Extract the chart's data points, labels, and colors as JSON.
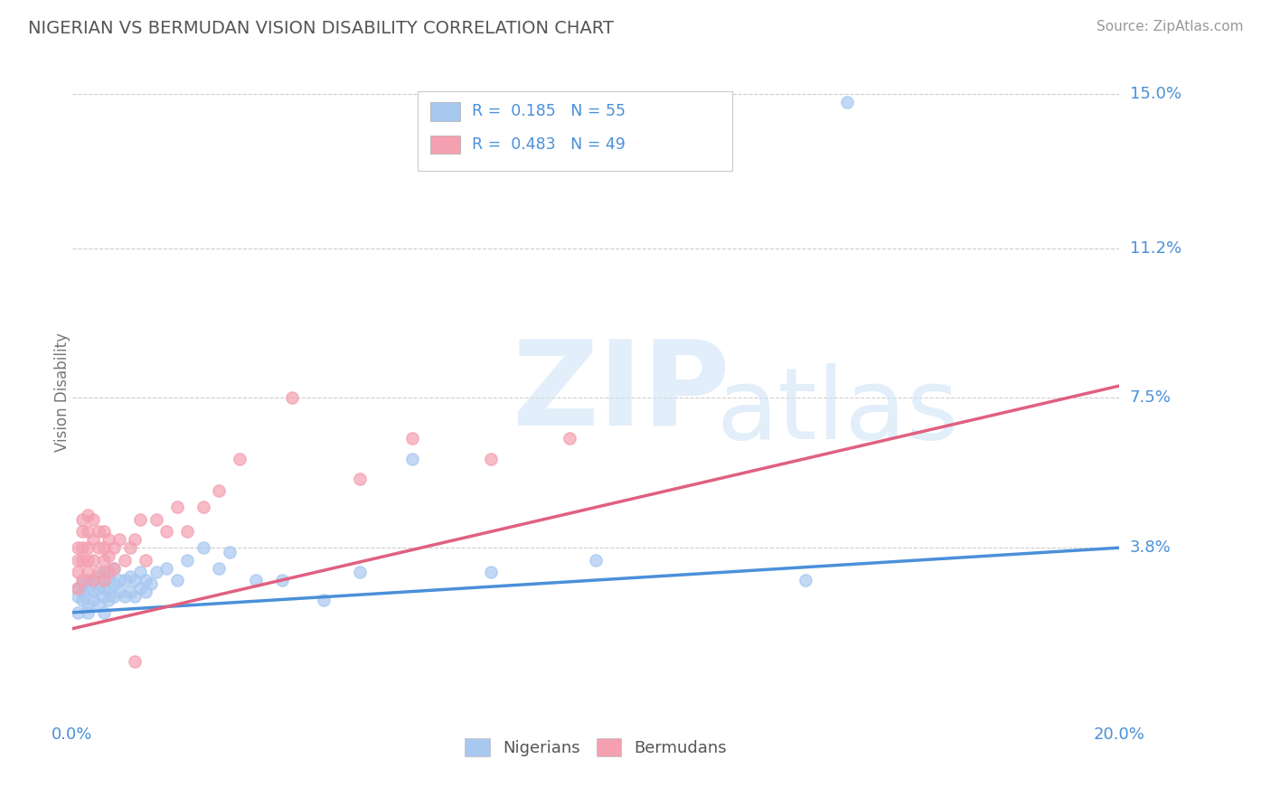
{
  "title": "NIGERIAN VS BERMUDAN VISION DISABILITY CORRELATION CHART",
  "source": "Source: ZipAtlas.com",
  "ylabel": "Vision Disability",
  "xlim": [
    0.0,
    0.2
  ],
  "ylim": [
    -0.005,
    0.158
  ],
  "ytick_values": [
    0.038,
    0.075,
    0.112,
    0.15
  ],
  "ytick_labels": [
    "3.8%",
    "7.5%",
    "11.2%",
    "15.0%"
  ],
  "nigerian_color": "#a8c8f0",
  "bermudan_color": "#f4a0b0",
  "nigerian_line_color": "#4a90d9",
  "bermudan_line_color": "#e06080",
  "R_nigerian": 0.185,
  "N_nigerian": 55,
  "R_bermudan": 0.483,
  "N_bermudan": 49,
  "legend_labels": [
    "Nigerians",
    "Bermudans"
  ],
  "watermark_zip": "ZIP",
  "watermark_atlas": "atlas",
  "background_color": "#ffffff",
  "grid_color": "#cccccc",
  "title_color": "#555555",
  "axis_label_color": "#4a90d9",
  "nigerian_points_x": [
    0.001,
    0.001,
    0.001,
    0.002,
    0.002,
    0.002,
    0.003,
    0.003,
    0.003,
    0.003,
    0.004,
    0.004,
    0.004,
    0.005,
    0.005,
    0.005,
    0.006,
    0.006,
    0.006,
    0.006,
    0.007,
    0.007,
    0.007,
    0.008,
    0.008,
    0.008,
    0.009,
    0.009,
    0.01,
    0.01,
    0.011,
    0.011,
    0.012,
    0.012,
    0.013,
    0.013,
    0.014,
    0.014,
    0.015,
    0.016,
    0.018,
    0.02,
    0.022,
    0.025,
    0.028,
    0.03,
    0.035,
    0.04,
    0.048,
    0.055,
    0.065,
    0.08,
    0.1,
    0.14,
    0.148
  ],
  "nigerian_points_y": [
    0.022,
    0.026,
    0.028,
    0.025,
    0.029,
    0.027,
    0.022,
    0.024,
    0.028,
    0.03,
    0.025,
    0.027,
    0.03,
    0.024,
    0.028,
    0.031,
    0.022,
    0.026,
    0.028,
    0.032,
    0.025,
    0.028,
    0.031,
    0.026,
    0.029,
    0.033,
    0.027,
    0.03,
    0.026,
    0.03,
    0.027,
    0.031,
    0.026,
    0.03,
    0.028,
    0.032,
    0.027,
    0.03,
    0.029,
    0.032,
    0.033,
    0.03,
    0.035,
    0.038,
    0.033,
    0.037,
    0.03,
    0.03,
    0.025,
    0.032,
    0.06,
    0.032,
    0.035,
    0.03,
    0.148
  ],
  "bermudan_points_x": [
    0.001,
    0.001,
    0.001,
    0.001,
    0.002,
    0.002,
    0.002,
    0.002,
    0.002,
    0.003,
    0.003,
    0.003,
    0.003,
    0.003,
    0.004,
    0.004,
    0.004,
    0.004,
    0.005,
    0.005,
    0.005,
    0.006,
    0.006,
    0.006,
    0.006,
    0.007,
    0.007,
    0.007,
    0.008,
    0.008,
    0.009,
    0.01,
    0.011,
    0.012,
    0.013,
    0.014,
    0.016,
    0.018,
    0.02,
    0.022,
    0.025,
    0.028,
    0.032,
    0.042,
    0.055,
    0.065,
    0.08,
    0.095,
    0.012
  ],
  "bermudan_points_y": [
    0.028,
    0.032,
    0.035,
    0.038,
    0.03,
    0.035,
    0.038,
    0.042,
    0.045,
    0.032,
    0.035,
    0.038,
    0.042,
    0.046,
    0.03,
    0.035,
    0.04,
    0.045,
    0.032,
    0.038,
    0.042,
    0.03,
    0.035,
    0.038,
    0.042,
    0.032,
    0.036,
    0.04,
    0.033,
    0.038,
    0.04,
    0.035,
    0.038,
    0.04,
    0.045,
    0.035,
    0.045,
    0.042,
    0.048,
    0.042,
    0.048,
    0.052,
    0.06,
    0.075,
    0.055,
    0.065,
    0.06,
    0.065,
    0.01
  ],
  "nigerian_trend_x0": 0.0,
  "nigerian_trend_y0": 0.022,
  "nigerian_trend_x1": 0.2,
  "nigerian_trend_y1": 0.038,
  "bermudan_trend_x0": 0.0,
  "bermudan_trend_y0": 0.018,
  "bermudan_trend_x1": 0.2,
  "bermudan_trend_y1": 0.078
}
